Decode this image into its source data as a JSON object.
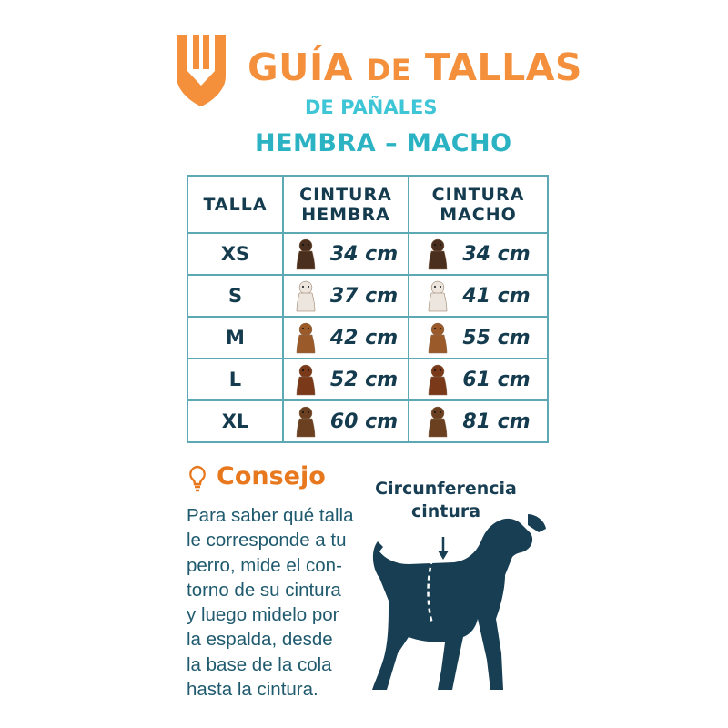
{
  "header": {
    "title_a": "GUÍA",
    "title_b": "DE",
    "title_c": "TALLAS",
    "subtitle": "DE PAÑALES",
    "gender_line": "HEMBRA – MACHO"
  },
  "table": {
    "headers": [
      "TALLA",
      "CINTURA HEMBRA",
      "CINTURA MACHO"
    ],
    "rows": [
      {
        "size": "XS",
        "female": "34 cm",
        "male": "34 cm",
        "dog": "chihuahua",
        "color": "#4a2f1e"
      },
      {
        "size": "S",
        "female": "37 cm",
        "male": "41 cm",
        "dog": "maltese",
        "color": "#ece6df"
      },
      {
        "size": "M",
        "female": "42 cm",
        "male": "55 cm",
        "dog": "beagle",
        "color": "#9a5a2a"
      },
      {
        "size": "L",
        "female": "52 cm",
        "male": "61 cm",
        "dog": "cocker-spaniel",
        "color": "#7a3a1a"
      },
      {
        "size": "XL",
        "female": "60 cm",
        "male": "81 cm",
        "dog": "german-shepherd",
        "color": "#6b4020"
      }
    ]
  },
  "tip": {
    "title": "Consejo",
    "body": "Para saber qué talla\nle corresponde a tu\nperro, mide el con-\ntorno de su cintura\ny luego midelo por\nla espalda, desde\nla base de la cola\nhasta la cintura."
  },
  "diagram": {
    "label": "Circunferencia\ncintura"
  },
  "colors": {
    "orange": "#F4903C",
    "cyan": "#2BB3C4",
    "navy": "#143B4E",
    "border": "#5CA9B3",
    "silhouette": "#173E52"
  }
}
